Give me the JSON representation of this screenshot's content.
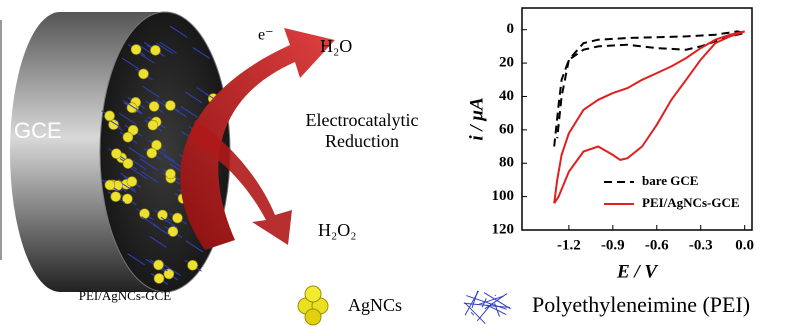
{
  "diagram": {
    "electron": "e⁻",
    "product_top": "H₂O",
    "process_line1": "Electrocatalytic",
    "process_line2": "Reduction",
    "reactant_bottom": "H₂O₂",
    "electrode": "GCE",
    "electrode_caption": "PEI/AgNCs-GCE",
    "legend_agncs": "AgNCs",
    "legend_pei": "Polyethyleneimine (PEI)"
  },
  "chart_data": {
    "type": "line",
    "xlabel": "E / V",
    "ylabel": "i / μA",
    "xlim": [
      -1.52,
      0.05
    ],
    "xticks": [
      -1.2,
      -0.9,
      -0.6,
      -0.3,
      {
        "value": 0,
        "label": "0.0"
      }
    ],
    "ylim": [
      120,
      -13
    ],
    "yticks": [
      0,
      20,
      40,
      60,
      80,
      100,
      120
    ],
    "legend": "lower-right",
    "series": [
      {
        "name": "bare GCE",
        "color": "#000000",
        "style": "dashed",
        "x": [
          -1.3,
          -1.27,
          -1.25,
          -1.2,
          -1.1,
          -1.0,
          -0.8,
          -0.6,
          -0.4,
          -0.3,
          -0.2,
          -0.1,
          0.0,
          -0.05,
          -0.2,
          -0.4,
          -0.6,
          -0.8,
          -1.0,
          -1.1,
          -1.2,
          -1.25,
          -1.28
        ],
        "values": [
          70,
          45,
          30,
          18,
          12,
          10,
          9,
          11,
          12,
          10,
          7,
          4,
          2,
          1,
          3,
          4,
          4.5,
          5,
          6,
          8,
          18,
          40,
          65
        ]
      },
      {
        "name": "PEI/AgNCs-GCE",
        "color": "#e02020",
        "style": "solid",
        "x": [
          -1.3,
          -1.28,
          -1.25,
          -1.2,
          -1.1,
          -1.0,
          -0.9,
          -0.8,
          -0.7,
          -0.6,
          -0.5,
          -0.4,
          -0.3,
          -0.2,
          -0.1,
          0.0,
          -0.1,
          -0.2,
          -0.3,
          -0.4,
          -0.5,
          -0.6,
          -0.7,
          -0.8,
          -0.85,
          -0.9,
          -1.0,
          -1.1,
          -1.2,
          -1.27,
          -1.3
        ],
        "values": [
          104,
          90,
          75,
          62,
          48,
          42,
          38,
          35,
          30,
          26,
          22,
          17,
          11,
          6,
          3,
          1,
          4,
          8,
          18,
          30,
          42,
          57,
          70,
          77,
          78,
          75,
          70,
          73,
          85,
          100,
          104
        ]
      }
    ]
  }
}
